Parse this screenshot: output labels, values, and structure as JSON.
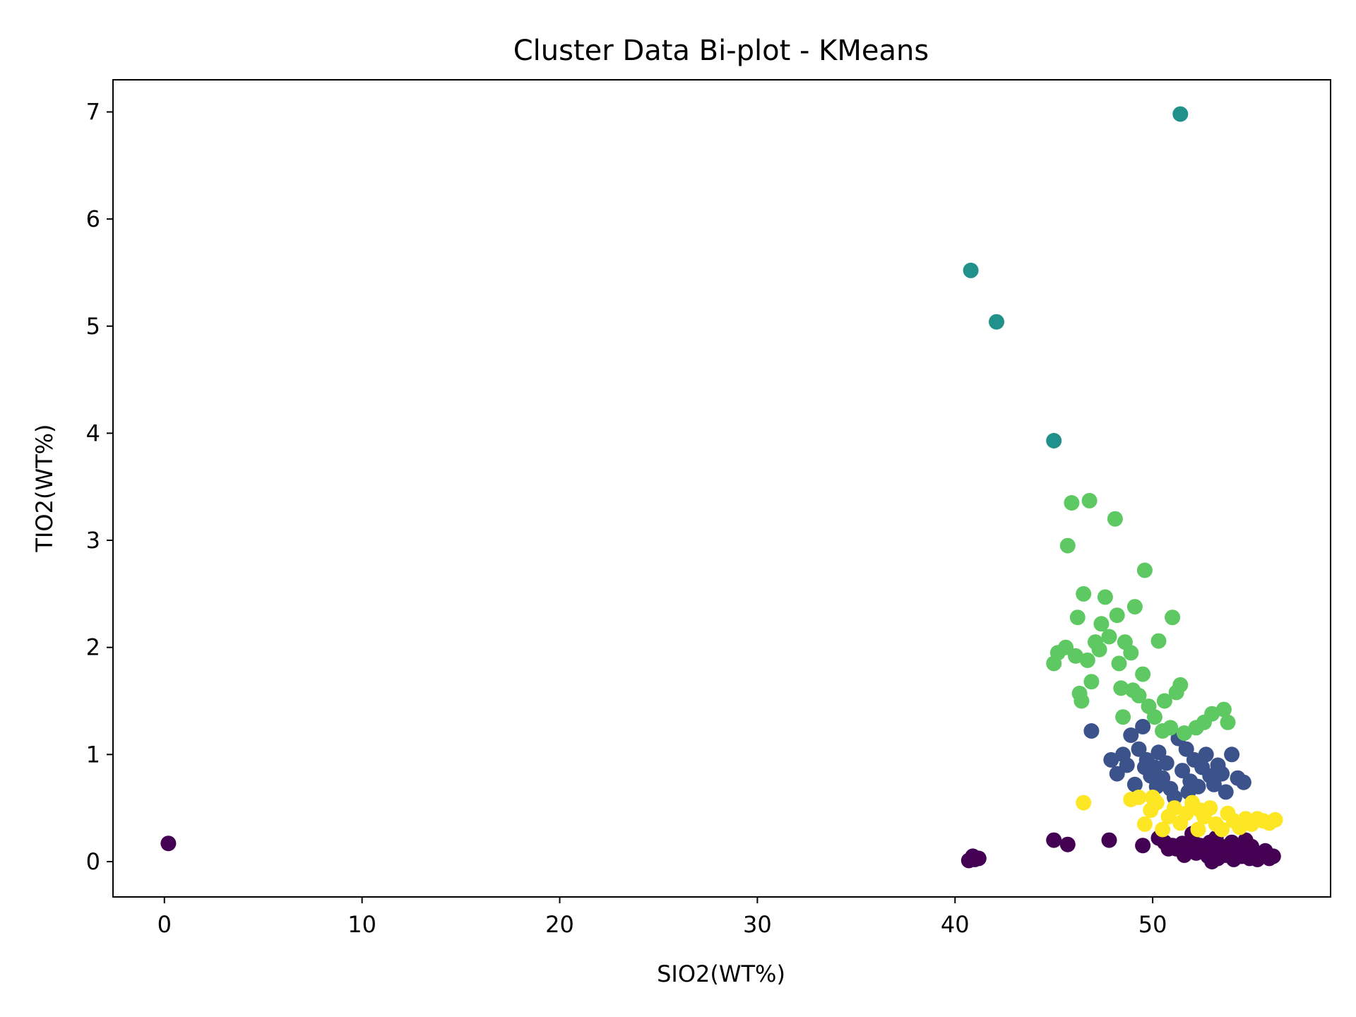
{
  "chart_data": {
    "type": "scatter",
    "title": "Cluster Data Bi-plot - KMeans",
    "xlabel": "SIO2(WT%)",
    "ylabel": "TIO2(WT%)",
    "xlim": [
      -2.6,
      59.0
    ],
    "ylim": [
      -0.33,
      7.3
    ],
    "xticks": [
      0,
      10,
      20,
      30,
      40,
      50
    ],
    "yticks": [
      0,
      1,
      2,
      3,
      4,
      5,
      6,
      7
    ],
    "grid": false,
    "legend": "none",
    "colors": {
      "cluster_0": "#440154",
      "cluster_1": "#3b528b",
      "cluster_2": "#21918c",
      "cluster_3": "#5ec962",
      "cluster_4": "#fde725"
    },
    "series": [
      {
        "color": "#440154",
        "points": [
          [
            0.2,
            0.17
          ],
          [
            40.7,
            0.01
          ],
          [
            40.9,
            0.05
          ],
          [
            41.0,
            0.02
          ],
          [
            41.2,
            0.03
          ],
          [
            45.0,
            0.2
          ],
          [
            45.7,
            0.16
          ],
          [
            47.8,
            0.2
          ],
          [
            49.5,
            0.15
          ],
          [
            50.3,
            0.22
          ],
          [
            50.6,
            0.18
          ],
          [
            51.0,
            0.15
          ],
          [
            51.2,
            0.12
          ],
          [
            51.5,
            0.17
          ],
          [
            51.8,
            0.1
          ],
          [
            52.0,
            0.2
          ],
          [
            52.2,
            0.08
          ],
          [
            52.4,
            0.15
          ],
          [
            52.6,
            0.12
          ],
          [
            52.8,
            0.05
          ],
          [
            52.9,
            0.18
          ],
          [
            53.1,
            0.1
          ],
          [
            53.3,
            0.03
          ],
          [
            53.5,
            0.14
          ],
          [
            53.7,
            0.06
          ],
          [
            53.9,
            0.1
          ],
          [
            54.1,
            0.02
          ],
          [
            54.3,
            0.12
          ],
          [
            54.5,
            0.05
          ],
          [
            54.7,
            0.2
          ],
          [
            54.9,
            0.03
          ],
          [
            55.1,
            0.08
          ],
          [
            55.3,
            0.02
          ],
          [
            55.5,
            0.06
          ],
          [
            55.7,
            0.1
          ],
          [
            55.9,
            0.03
          ],
          [
            56.1,
            0.05
          ],
          [
            52.0,
            0.26
          ],
          [
            53.2,
            0.22
          ],
          [
            51.6,
            0.06
          ],
          [
            50.8,
            0.12
          ],
          [
            54.0,
            0.18
          ],
          [
            53.0,
            0.0
          ],
          [
            55.0,
            0.14
          ]
        ]
      },
      {
        "color": "#3b528b",
        "points": [
          [
            46.9,
            1.22
          ],
          [
            47.9,
            0.95
          ],
          [
            48.2,
            0.82
          ],
          [
            48.5,
            1.0
          ],
          [
            48.7,
            0.9
          ],
          [
            48.9,
            1.18
          ],
          [
            49.1,
            0.72
          ],
          [
            49.3,
            1.05
          ],
          [
            49.5,
            1.26
          ],
          [
            49.7,
            0.95
          ],
          [
            49.9,
            0.8
          ],
          [
            50.1,
            0.88
          ],
          [
            50.3,
            1.02
          ],
          [
            50.5,
            0.78
          ],
          [
            50.7,
            0.92
          ],
          [
            50.9,
            0.68
          ],
          [
            51.1,
            0.6
          ],
          [
            51.3,
            1.15
          ],
          [
            51.5,
            0.85
          ],
          [
            51.7,
            1.05
          ],
          [
            51.9,
            0.75
          ],
          [
            52.1,
            0.95
          ],
          [
            52.3,
            0.7
          ],
          [
            52.5,
            0.88
          ],
          [
            52.7,
            1.0
          ],
          [
            52.9,
            0.8
          ],
          [
            53.1,
            0.72
          ],
          [
            53.3,
            0.9
          ],
          [
            53.5,
            0.82
          ],
          [
            53.7,
            0.65
          ],
          [
            54.0,
            1.0
          ],
          [
            54.3,
            0.78
          ],
          [
            54.6,
            0.74
          ],
          [
            50.2,
            0.7
          ],
          [
            51.8,
            0.65
          ],
          [
            49.6,
            0.88
          ]
        ]
      },
      {
        "color": "#21918c",
        "points": [
          [
            40.8,
            5.52
          ],
          [
            42.1,
            5.04
          ],
          [
            45.0,
            3.93
          ],
          [
            51.4,
            6.98
          ]
        ]
      },
      {
        "color": "#5ec962",
        "points": [
          [
            45.0,
            1.85
          ],
          [
            45.2,
            1.95
          ],
          [
            45.6,
            2.0
          ],
          [
            45.7,
            2.95
          ],
          [
            45.9,
            3.35
          ],
          [
            46.1,
            1.92
          ],
          [
            46.2,
            2.28
          ],
          [
            46.3,
            1.57
          ],
          [
            46.4,
            1.5
          ],
          [
            46.5,
            2.5
          ],
          [
            46.7,
            1.88
          ],
          [
            46.8,
            3.37
          ],
          [
            46.9,
            1.68
          ],
          [
            47.1,
            2.05
          ],
          [
            47.3,
            1.98
          ],
          [
            47.4,
            2.22
          ],
          [
            47.6,
            2.47
          ],
          [
            47.8,
            2.1
          ],
          [
            48.1,
            3.2
          ],
          [
            48.2,
            2.3
          ],
          [
            48.4,
            1.62
          ],
          [
            48.5,
            1.35
          ],
          [
            48.6,
            2.05
          ],
          [
            48.9,
            1.95
          ],
          [
            49.1,
            2.38
          ],
          [
            49.3,
            1.55
          ],
          [
            49.5,
            1.75
          ],
          [
            49.6,
            2.72
          ],
          [
            49.8,
            1.45
          ],
          [
            50.1,
            1.35
          ],
          [
            50.3,
            2.06
          ],
          [
            50.6,
            1.5
          ],
          [
            50.9,
            1.25
          ],
          [
            51.0,
            2.28
          ],
          [
            51.2,
            1.58
          ],
          [
            51.4,
            1.65
          ],
          [
            51.6,
            1.2
          ],
          [
            52.2,
            1.25
          ],
          [
            52.6,
            1.3
          ],
          [
            53.0,
            1.38
          ],
          [
            53.6,
            1.42
          ],
          [
            53.8,
            1.3
          ],
          [
            48.3,
            1.85
          ],
          [
            49.0,
            1.6
          ],
          [
            50.5,
            1.22
          ]
        ]
      },
      {
        "color": "#fde725",
        "points": [
          [
            46.5,
            0.55
          ],
          [
            48.9,
            0.58
          ],
          [
            49.3,
            0.6
          ],
          [
            49.6,
            0.35
          ],
          [
            49.9,
            0.48
          ],
          [
            50.2,
            0.55
          ],
          [
            50.5,
            0.3
          ],
          [
            50.8,
            0.42
          ],
          [
            51.1,
            0.5
          ],
          [
            51.4,
            0.36
          ],
          [
            51.7,
            0.45
          ],
          [
            52.0,
            0.55
          ],
          [
            52.3,
            0.3
          ],
          [
            52.6,
            0.42
          ],
          [
            52.9,
            0.5
          ],
          [
            53.2,
            0.35
          ],
          [
            53.5,
            0.3
          ],
          [
            53.8,
            0.45
          ],
          [
            54.1,
            0.38
          ],
          [
            54.4,
            0.32
          ],
          [
            54.7,
            0.4
          ],
          [
            55.0,
            0.35
          ],
          [
            55.3,
            0.4
          ],
          [
            55.6,
            0.38
          ],
          [
            55.9,
            0.36
          ],
          [
            56.2,
            0.39
          ],
          [
            50.0,
            0.6
          ],
          [
            52.4,
            0.48
          ]
        ]
      }
    ]
  }
}
